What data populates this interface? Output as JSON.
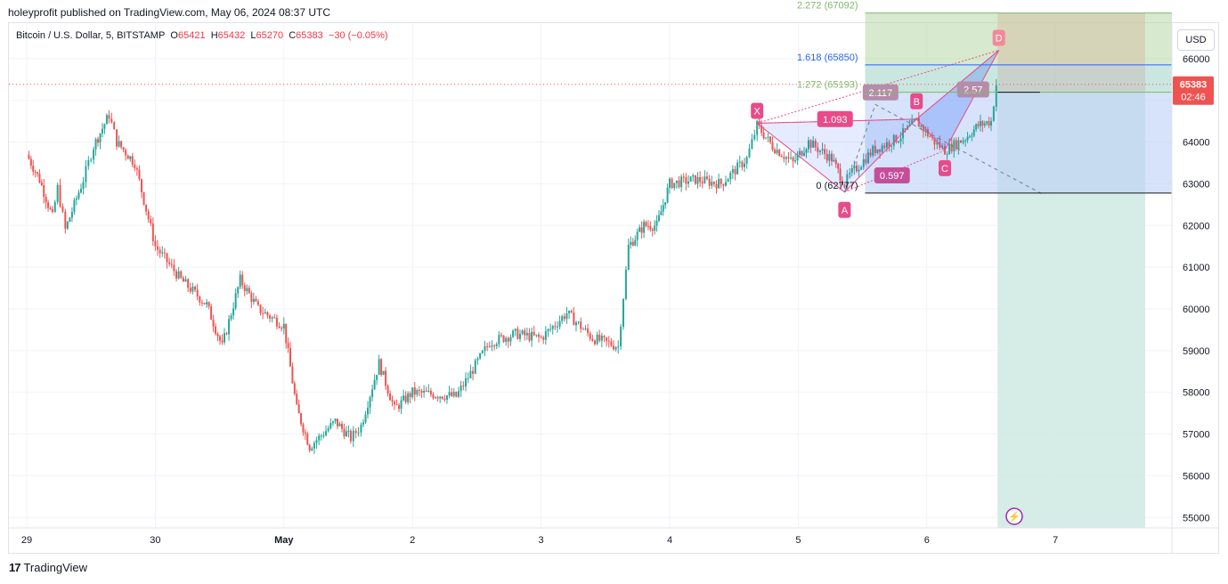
{
  "header": {
    "published_text": "holeyprofit published on TradingView.com, May 06, 2024 08:37 UTC"
  },
  "legend": {
    "symbol": "Bitcoin / U.S. Dollar, 5, BITSTAMP",
    "open_label": "O",
    "open": "65421",
    "high_label": "H",
    "high": "65432",
    "low_label": "L",
    "low": "65270",
    "close_label": "C",
    "close": "65383",
    "change": "−30 (−0.05%)"
  },
  "currency_button": "USD",
  "footer": {
    "brand": "TradingView",
    "logo_mark": "17"
  },
  "colors": {
    "up": "#26a69a",
    "down": "#ef5350",
    "pattern": "#e84b8a",
    "fib_green": "#7cb86b",
    "fib_blue": "#2962ff",
    "zone_blue": "#bbd0f7",
    "zone_green": "#cfe9e2"
  },
  "chart_data": {
    "type": "candlestick",
    "x_tick_labels": [
      "29",
      "30",
      "May",
      "2",
      "3",
      "4",
      "5",
      "6",
      "7"
    ],
    "y_tick_labels": [
      "55000",
      "56000",
      "57000",
      "58000",
      "59000",
      "60000",
      "61000",
      "62000",
      "63000",
      "64000",
      "65000",
      "66000"
    ],
    "ylim": [
      54750,
      66850
    ],
    "current_price_label": "65383",
    "countdown_label": "02:46",
    "price_path": [
      [
        0,
        63700
      ],
      [
        0.5,
        63100
      ],
      [
        1,
        62200
      ],
      [
        1.2,
        62900
      ],
      [
        1.5,
        61900
      ],
      [
        2.2,
        63100
      ],
      [
        2.6,
        63900
      ],
      [
        3.2,
        64650
      ],
      [
        3.5,
        64000
      ],
      [
        4.2,
        63500
      ],
      [
        5,
        61500
      ],
      [
        6,
        60700
      ],
      [
        7,
        60100
      ],
      [
        7.6,
        59100
      ],
      [
        8.3,
        60700
      ],
      [
        9,
        60000
      ],
      [
        10,
        59600
      ],
      [
        10.5,
        57600
      ],
      [
        11,
        56700
      ],
      [
        12,
        57300
      ],
      [
        12.6,
        56900
      ],
      [
        13,
        57200
      ],
      [
        13.7,
        58700
      ],
      [
        14.3,
        57600
      ],
      [
        15,
        58000
      ],
      [
        16.7,
        57900
      ],
      [
        18,
        59200
      ],
      [
        19,
        59400
      ],
      [
        20,
        59300
      ],
      [
        21,
        59900
      ],
      [
        22,
        59300
      ],
      [
        23,
        59100
      ],
      [
        23.4,
        61500
      ],
      [
        24,
        62000
      ],
      [
        24.5,
        62000
      ],
      [
        25,
        63000
      ],
      [
        26,
        63100
      ],
      [
        27,
        63000
      ],
      [
        28,
        63600
      ],
      [
        28.4,
        64400
      ],
      [
        29,
        63900
      ],
      [
        29.8,
        63500
      ],
      [
        30.4,
        64000
      ],
      [
        31.3,
        63600
      ],
      [
        31.8,
        63000
      ],
      [
        32,
        63200
      ],
      [
        32.9,
        63800
      ],
      [
        33.9,
        64100
      ],
      [
        34.6,
        64500
      ],
      [
        35.3,
        64000
      ],
      [
        35.7,
        63800
      ],
      [
        36.5,
        64100
      ],
      [
        37,
        64400
      ],
      [
        37.5,
        64500
      ],
      [
        37.7,
        65380
      ]
    ],
    "pattern": {
      "name": "XABCD",
      "points": {
        "X": [
          28.4,
          64450
        ],
        "A": [
          31.8,
          62800
        ],
        "B": [
          34.6,
          64550
        ],
        "C": [
          35.7,
          63800
        ],
        "D": [
          37.8,
          66200
        ]
      },
      "ratios": {
        "XB": "1.093",
        "AC": "0.597",
        "XD": "2.117",
        "BD": "2.57"
      }
    },
    "fib_levels": [
      {
        "label": "2.272 (67092)",
        "value": 67092
      },
      {
        "label": "1.618 (65850)",
        "value": 65850
      },
      {
        "label": "1.272 (65193)",
        "value": 65193
      },
      {
        "label": "0 (62777)",
        "value": 62777
      }
    ],
    "position": {
      "entry": 65193,
      "target": 54750,
      "stop": 67092
    }
  }
}
